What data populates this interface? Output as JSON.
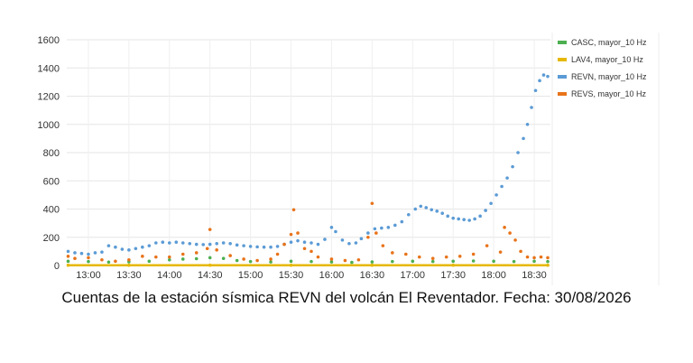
{
  "caption": "Cuentas de la estación sísmica REVN del volcán El Reventador. Fecha: 30/08/2026",
  "chart_data": {
    "type": "scatter",
    "title": "",
    "xlabel": "",
    "ylabel": "",
    "ylim": [
      0,
      1600
    ],
    "yticks": [
      0,
      200,
      400,
      600,
      800,
      1000,
      1200,
      1400,
      1600
    ],
    "xlim": [
      "12:44",
      "18:42"
    ],
    "xticks": [
      "13:00",
      "13:30",
      "14:00",
      "14:30",
      "15:00",
      "15:30",
      "16:00",
      "16:30",
      "17:00",
      "17:30",
      "18:00",
      "18:30"
    ],
    "grid": true,
    "legend": "top-right",
    "series": [
      {
        "name": "CASC, mayor_10 Hz",
        "color": "#4caf50",
        "points": [
          [
            "12:45",
            30
          ],
          [
            "13:00",
            28
          ],
          [
            "13:15",
            24
          ],
          [
            "13:30",
            26
          ],
          [
            "13:45",
            30
          ],
          [
            "14:00",
            40
          ],
          [
            "14:10",
            45
          ],
          [
            "14:20",
            48
          ],
          [
            "14:30",
            55
          ],
          [
            "14:40",
            50
          ],
          [
            "14:50",
            35
          ],
          [
            "15:00",
            28
          ],
          [
            "15:15",
            25
          ],
          [
            "15:30",
            30
          ],
          [
            "15:45",
            28
          ],
          [
            "16:00",
            25
          ],
          [
            "16:15",
            22
          ],
          [
            "16:30",
            25
          ],
          [
            "16:45",
            28
          ],
          [
            "17:00",
            30
          ],
          [
            "17:15",
            28
          ],
          [
            "17:30",
            30
          ],
          [
            "17:45",
            32
          ],
          [
            "18:00",
            30
          ],
          [
            "18:15",
            28
          ],
          [
            "18:30",
            30
          ],
          [
            "18:40",
            28
          ]
        ]
      },
      {
        "name": "LAV4, mayor_10 Hz",
        "color": "#e6b800",
        "points": [
          [
            "12:45",
            2
          ],
          [
            "13:30",
            2
          ],
          [
            "14:30",
            2
          ],
          [
            "15:30",
            2
          ],
          [
            "16:30",
            2
          ],
          [
            "17:30",
            2
          ],
          [
            "18:40",
            2
          ]
        ]
      },
      {
        "name": "REVN, mayor_10 Hz",
        "color": "#5b9bd5",
        "points": [
          [
            "12:45",
            100
          ],
          [
            "12:50",
            90
          ],
          [
            "12:55",
            85
          ],
          [
            "13:00",
            80
          ],
          [
            "13:05",
            90
          ],
          [
            "13:10",
            95
          ],
          [
            "13:15",
            140
          ],
          [
            "13:20",
            130
          ],
          [
            "13:25",
            115
          ],
          [
            "13:30",
            110
          ],
          [
            "13:35",
            120
          ],
          [
            "13:40",
            130
          ],
          [
            "13:45",
            140
          ],
          [
            "13:50",
            160
          ],
          [
            "13:55",
            165
          ],
          [
            "14:00",
            160
          ],
          [
            "14:05",
            165
          ],
          [
            "14:10",
            160
          ],
          [
            "14:15",
            155
          ],
          [
            "14:20",
            150
          ],
          [
            "14:25",
            148
          ],
          [
            "14:30",
            150
          ],
          [
            "14:35",
            155
          ],
          [
            "14:40",
            160
          ],
          [
            "14:45",
            155
          ],
          [
            "14:50",
            145
          ],
          [
            "14:55",
            140
          ],
          [
            "15:00",
            135
          ],
          [
            "15:05",
            132
          ],
          [
            "15:10",
            130
          ],
          [
            "15:15",
            130
          ],
          [
            "15:20",
            135
          ],
          [
            "15:25",
            150
          ],
          [
            "15:30",
            165
          ],
          [
            "15:35",
            175
          ],
          [
            "15:40",
            165
          ],
          [
            "15:45",
            160
          ],
          [
            "15:50",
            150
          ],
          [
            "15:55",
            185
          ],
          [
            "16:00",
            270
          ],
          [
            "16:03",
            240
          ],
          [
            "16:08",
            180
          ],
          [
            "16:13",
            155
          ],
          [
            "16:18",
            160
          ],
          [
            "16:22",
            190
          ],
          [
            "16:27",
            230
          ],
          [
            "16:32",
            260
          ],
          [
            "16:37",
            265
          ],
          [
            "16:42",
            270
          ],
          [
            "16:47",
            285
          ],
          [
            "16:52",
            310
          ],
          [
            "16:57",
            360
          ],
          [
            "17:02",
            400
          ],
          [
            "17:06",
            420
          ],
          [
            "17:10",
            410
          ],
          [
            "17:14",
            395
          ],
          [
            "17:18",
            385
          ],
          [
            "17:22",
            370
          ],
          [
            "17:26",
            350
          ],
          [
            "17:30",
            335
          ],
          [
            "17:34",
            330
          ],
          [
            "17:38",
            325
          ],
          [
            "17:42",
            320
          ],
          [
            "17:46",
            330
          ],
          [
            "17:50",
            350
          ],
          [
            "17:54",
            390
          ],
          [
            "17:58",
            440
          ],
          [
            "18:02",
            500
          ],
          [
            "18:06",
            560
          ],
          [
            "18:10",
            620
          ],
          [
            "18:14",
            700
          ],
          [
            "18:18",
            800
          ],
          [
            "18:22",
            900
          ],
          [
            "18:25",
            1000
          ],
          [
            "18:28",
            1120
          ],
          [
            "18:31",
            1240
          ],
          [
            "18:34",
            1310
          ],
          [
            "18:37",
            1350
          ],
          [
            "18:40",
            1340
          ]
        ]
      },
      {
        "name": "REVS, mayor_10 Hz",
        "color": "#e8731a",
        "points": [
          [
            "12:45",
            65
          ],
          [
            "12:50",
            50
          ],
          [
            "13:00",
            55
          ],
          [
            "13:10",
            40
          ],
          [
            "13:20",
            30
          ],
          [
            "13:30",
            40
          ],
          [
            "13:40",
            65
          ],
          [
            "13:50",
            60
          ],
          [
            "14:00",
            60
          ],
          [
            "14:10",
            80
          ],
          [
            "14:20",
            90
          ],
          [
            "14:28",
            120
          ],
          [
            "14:30",
            255
          ],
          [
            "14:35",
            110
          ],
          [
            "14:45",
            70
          ],
          [
            "14:55",
            45
          ],
          [
            "15:05",
            35
          ],
          [
            "15:15",
            45
          ],
          [
            "15:20",
            80
          ],
          [
            "15:25",
            150
          ],
          [
            "15:30",
            220
          ],
          [
            "15:32",
            395
          ],
          [
            "15:35",
            230
          ],
          [
            "15:40",
            120
          ],
          [
            "15:45",
            100
          ],
          [
            "15:50",
            60
          ],
          [
            "16:00",
            45
          ],
          [
            "16:10",
            35
          ],
          [
            "16:20",
            40
          ],
          [
            "16:27",
            200
          ],
          [
            "16:30",
            440
          ],
          [
            "16:33",
            230
          ],
          [
            "16:38",
            140
          ],
          [
            "16:45",
            90
          ],
          [
            "16:55",
            80
          ],
          [
            "17:05",
            60
          ],
          [
            "17:15",
            50
          ],
          [
            "17:25",
            60
          ],
          [
            "17:35",
            65
          ],
          [
            "17:45",
            80
          ],
          [
            "17:55",
            140
          ],
          [
            "18:05",
            95
          ],
          [
            "18:08",
            270
          ],
          [
            "18:12",
            230
          ],
          [
            "18:16",
            180
          ],
          [
            "18:20",
            100
          ],
          [
            "18:25",
            60
          ],
          [
            "18:30",
            55
          ],
          [
            "18:35",
            60
          ],
          [
            "18:40",
            55
          ]
        ]
      }
    ]
  }
}
